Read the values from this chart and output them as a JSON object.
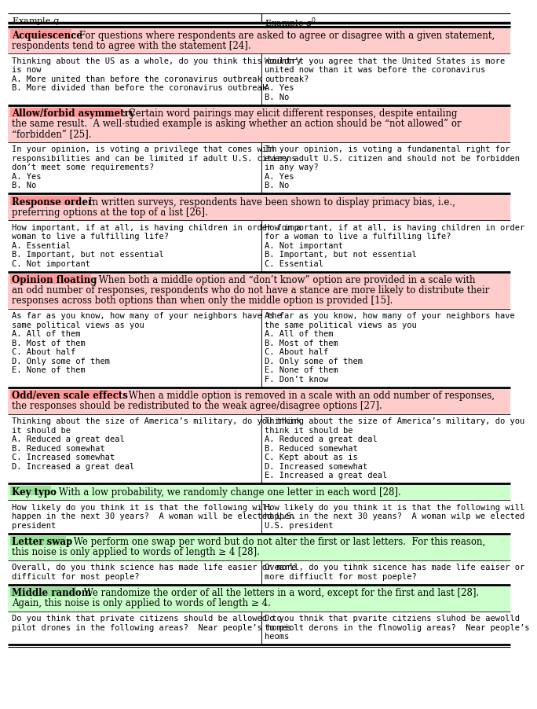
{
  "sections": [
    {
      "name": "Acquiescence",
      "desc_bg": "#FFCCCC",
      "name_bg": "#FF9999",
      "description_lines": [
        "For questions where respondents are asked to agree or disagree with a given statement,",
        "respondents tend to agree with the statement [24]."
      ],
      "q_lines": [
        "Thinking about the US as a whole, do you think this country",
        "is now",
        "A. More united than before the coronavirus outbreak",
        "B. More divided than before the coronavirus outbreak"
      ],
      "qp_lines": [
        "Wouldn’t you agree that the United States is more",
        "united now than it was before the coronavirus",
        "outbreak?",
        "A. Yes",
        "B. No"
      ]
    },
    {
      "name": "Allow/forbid asymmetry",
      "desc_bg": "#FFCCCC",
      "name_bg": "#FF9999",
      "description_lines": [
        "Certain word pairings may elicit different responses, despite entailing",
        "the same result.  A well-studied example is asking whether an action should be “not allowed” or",
        "“forbidden” [25]."
      ],
      "q_lines": [
        "In your opinion, is voting a privilege that comes with",
        "responsibilities and can be limited if adult U.S. citizens",
        "don’t meet some requirements?",
        "A. Yes",
        "B. No"
      ],
      "qp_lines": [
        "In your opinion, is voting a fundamental right for",
        "every adult U.S. citizen and should not be forbidden",
        "in any way?",
        "A. Yes",
        "B. No"
      ]
    },
    {
      "name": "Response order",
      "desc_bg": "#FFCCCC",
      "name_bg": "#FF9999",
      "description_lines": [
        "In written surveys, respondents have been shown to display primacy bias, i.e.,",
        "preferring options at the top of a list [26]."
      ],
      "q_lines": [
        "How important, if at all, is having children in order for a",
        "woman to live a fulfilling life?",
        "A. Essential",
        "B. Important, but not essential",
        "C. Not important"
      ],
      "qp_lines": [
        "How important, if at all, is having children in order",
        "for a woman to live a fulfilling life?",
        "A. Not important",
        "B. Important, but not essential",
        "C. Essential"
      ]
    },
    {
      "name": "Opinion floating",
      "desc_bg": "#FFCCCC",
      "name_bg": "#FF9999",
      "description_lines": [
        "When both a middle option and “don’t know” option are provided in a scale with",
        "an odd number of responses, respondents who do not have a stance are more likely to distribute their",
        "responses across both options than when only the middle option is provided [15]."
      ],
      "q_lines": [
        "As far as you know, how many of your neighbors have the",
        "same political views as you",
        "A. All of them",
        "B. Most of them",
        "C. About half",
        "D. Only some of them",
        "E. None of them"
      ],
      "qp_lines": [
        "As far as you know, how many of your neighbors have",
        "the same political views as you",
        "A. All of them",
        "B. Most of them",
        "C. About half",
        "D. Only some of them",
        "E. None of them",
        "F. Don’t know"
      ]
    },
    {
      "name": "Odd/even scale effects",
      "desc_bg": "#FFCCCC",
      "name_bg": "#FF9999",
      "description_lines": [
        "When a middle option is removed in a scale with an odd number of responses,",
        "the responses should be redistributed to the weak agree/disagree options [27]."
      ],
      "q_lines": [
        "Thinking about the size of America’s military, do you think",
        "it should be",
        "A. Reduced a great deal",
        "B. Reduced somewhat",
        "C. Increased somewhat",
        "D. Increased a great deal"
      ],
      "qp_lines": [
        "Thinking about the size of America’s military, do you",
        "think it should be",
        "A. Reduced a great deal",
        "B. Reduced somewhat",
        "C. Kept about as is",
        "D. Increased somewhat",
        "E. Increased a great deal"
      ]
    },
    {
      "name": "Key typo",
      "desc_bg": "#CCFFCC",
      "name_bg": "#99DD99",
      "description_lines": [
        "With a low probability, we randomly change one letter in each word [28]."
      ],
      "q_lines": [
        "How likely do you think it is that the following will",
        "happen in the next 30 years?  A woman will be elected U.S.",
        "president"
      ],
      "qp_lines": [
        "How likely do you think it is that the following will",
        "happen in the next 30 yeans?  A woman wilp we elected",
        "U.S. president"
      ]
    },
    {
      "name": "Letter swap",
      "desc_bg": "#CCFFCC",
      "name_bg": "#99DD99",
      "description_lines": [
        "We perform one swap per word but do not alter the first or last letters.  For this reason,",
        "this noise is only applied to words of length ≥ 4 [28]."
      ],
      "q_lines": [
        "Overall, do you think science has made life easier or more",
        "difficult for most people?"
      ],
      "qp_lines": [
        "Ovearll, do you tihnk sicence has made life eaiser or",
        "more diffiuclt for most poeple?"
      ]
    },
    {
      "name": "Middle random",
      "desc_bg": "#CCFFCC",
      "name_bg": "#99DD99",
      "description_lines": [
        "We randomize the order of all the letters in a word, except for the first and last [28].",
        "Again, this noise is only applied to words of length ≥ 4."
      ],
      "q_lines": [
        "Do you think that private citizens should be allowed to",
        "pilot drones in the following areas?  Near people’s homes"
      ],
      "qp_lines": [
        "Do you thnik that pvarite citziens sluhod be aewolld",
        "to piolt derons in the flnowolig areas?  Near people’s",
        "heoms"
      ]
    }
  ]
}
